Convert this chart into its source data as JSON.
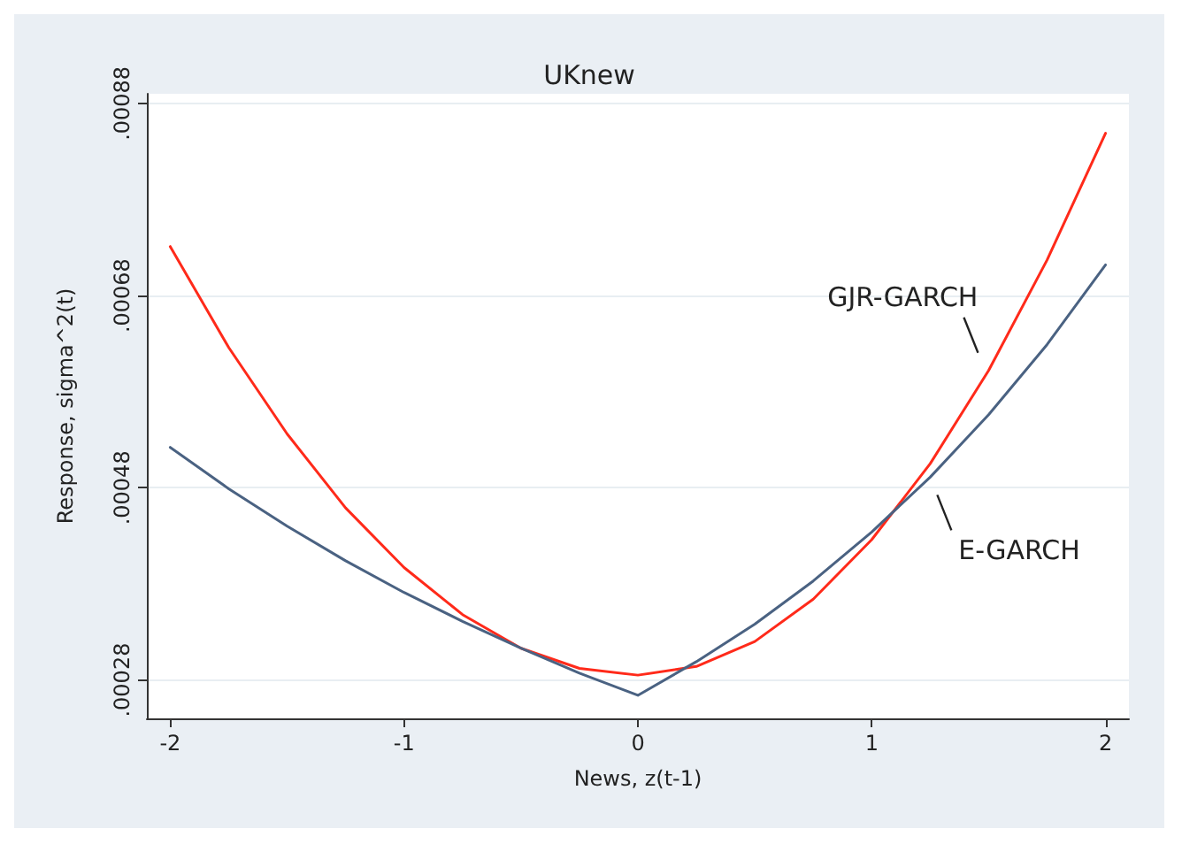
{
  "chart_data": {
    "type": "line",
    "title": "UKnew",
    "xlabel": "News, z(t-1)",
    "ylabel": "Response, sigma^2(t)",
    "x": [
      -2,
      -1.75,
      -1.5,
      -1.25,
      -1,
      -0.75,
      -0.5,
      -0.25,
      0,
      0.25,
      0.5,
      0.75,
      1,
      1.25,
      1.5,
      1.75,
      2
    ],
    "series": [
      {
        "name": "GJR-GARCH",
        "color": "#ff2a1a",
        "values": [
          0.000731,
          0.000626,
          0.000536,
          0.000459,
          0.000397,
          0.000348,
          0.000313,
          0.000292,
          0.000285,
          0.000294,
          0.00032,
          0.000364,
          0.000426,
          0.000505,
          0.000602,
          0.000717,
          0.000849
        ]
      },
      {
        "name": "E-GARCH",
        "color": "#4a6282",
        "values": [
          0.000522,
          0.000479,
          0.00044,
          0.000404,
          0.000371,
          0.000341,
          0.000313,
          0.000287,
          0.000264,
          0.000299,
          0.000338,
          0.000383,
          0.000434,
          0.000491,
          0.000556,
          0.000629,
          0.000712
        ]
      }
    ],
    "xlim": [
      -2.1,
      2.1
    ],
    "xticks": [
      -2,
      -1,
      0,
      1,
      2
    ],
    "ylim": [
      0.00024,
      0.00089
    ],
    "yticks": [
      {
        "value": 0.00028,
        "label": ".00028"
      },
      {
        "value": 0.00048,
        "label": ".00048"
      },
      {
        "value": 0.00068,
        "label": ".00068"
      },
      {
        "value": 0.00088,
        "label": ".00088"
      }
    ],
    "grid": "y",
    "legend": false,
    "marker": "none",
    "line_style": "solid"
  }
}
